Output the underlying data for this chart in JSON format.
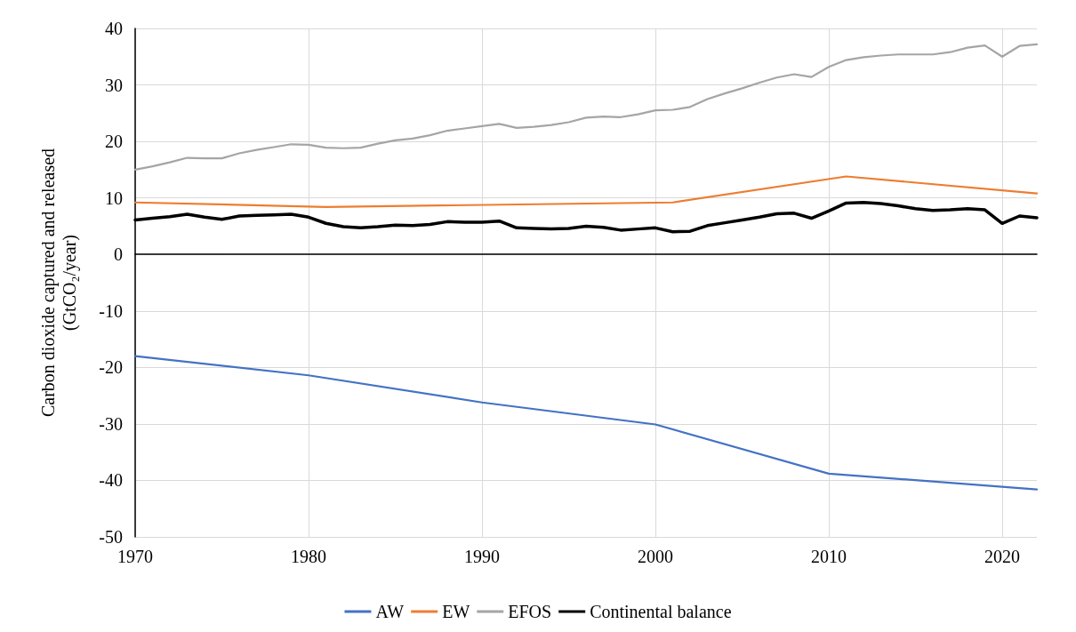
{
  "chart_data": {
    "type": "line",
    "ylabel": "Carbon dioxide captured and released\n(GtCO₂/year)",
    "xlim": [
      1970,
      2022
    ],
    "xticks": [
      1970,
      1980,
      1990,
      2000,
      2010,
      2020
    ],
    "ylim": [
      -50,
      40
    ],
    "yticks": [
      -50,
      -40,
      -30,
      -20,
      -10,
      0,
      10,
      20,
      30,
      40
    ],
    "grid": true,
    "legend": "bottom",
    "marker": "none",
    "line_style": "solid",
    "series": [
      {
        "name": "AW",
        "color": "#4472c4",
        "x": [
          1970,
          1980,
          1990,
          2000,
          2010,
          2022
        ],
        "values": [
          -18,
          -21.4,
          -26.2,
          -30.1,
          -38.8,
          -41.6
        ]
      },
      {
        "name": "EW",
        "color": "#ed7d31",
        "x": [
          1970,
          1981,
          2001,
          2011,
          2022
        ],
        "values": [
          9.2,
          8.4,
          9.2,
          13.8,
          10.8
        ]
      },
      {
        "name": "EFOS",
        "color": "#a5a5a5",
        "x": [
          1970,
          1971,
          1972,
          1973,
          1974,
          1975,
          1976,
          1977,
          1978,
          1979,
          1980,
          1981,
          1982,
          1983,
          1984,
          1985,
          1986,
          1987,
          1988,
          1989,
          1990,
          1991,
          1992,
          1993,
          1994,
          1995,
          1996,
          1997,
          1998,
          1999,
          2000,
          2001,
          2002,
          2003,
          2004,
          2005,
          2006,
          2007,
          2008,
          2009,
          2010,
          2011,
          2012,
          2013,
          2014,
          2015,
          2016,
          2017,
          2018,
          2019,
          2020,
          2021,
          2022
        ],
        "values": [
          15,
          15.6,
          16.3,
          17.1,
          17.0,
          17.0,
          17.9,
          18.5,
          19.0,
          19.5,
          19.4,
          18.9,
          18.8,
          18.9,
          19.6,
          20.2,
          20.5,
          21.1,
          21.9,
          22.3,
          22.7,
          23.1,
          22.4,
          22.6,
          22.9,
          23.4,
          24.2,
          24.4,
          24.3,
          24.8,
          25.5,
          25.6,
          26.1,
          27.5,
          28.5,
          29.4,
          30.4,
          31.3,
          31.9,
          31.4,
          33.2,
          34.4,
          34.9,
          35.2,
          35.4,
          35.4,
          35.4,
          35.8,
          36.6,
          37.0,
          35.0,
          36.9,
          37.2
        ]
      },
      {
        "name": "Continental balance",
        "color": "#000000",
        "x": [
          1970,
          1971,
          1972,
          1973,
          1974,
          1975,
          1976,
          1977,
          1978,
          1979,
          1980,
          1981,
          1982,
          1983,
          1984,
          1985,
          1986,
          1987,
          1988,
          1989,
          1990,
          1991,
          1992,
          1993,
          1994,
          1995,
          1996,
          1997,
          1998,
          1999,
          2000,
          2001,
          2002,
          2003,
          2004,
          2005,
          2006,
          2007,
          2008,
          2009,
          2010,
          2011,
          2012,
          2013,
          2014,
          2015,
          2016,
          2017,
          2018,
          2019,
          2020,
          2021,
          2022
        ],
        "values": [
          6.1,
          6.4,
          6.7,
          7.1,
          6.6,
          6.2,
          6.8,
          6.9,
          7.0,
          7.1,
          6.6,
          5.5,
          4.9,
          4.7,
          4.9,
          5.2,
          5.1,
          5.3,
          5.8,
          5.7,
          5.7,
          5.9,
          4.7,
          4.6,
          4.5,
          4.6,
          5.0,
          4.8,
          4.3,
          4.5,
          4.7,
          4.0,
          4.1,
          5.1,
          5.6,
          6.1,
          6.6,
          7.2,
          7.3,
          6.4,
          7.7,
          9.1,
          9.2,
          9.0,
          8.6,
          8.1,
          7.8,
          7.9,
          8.1,
          7.9,
          5.5,
          6.8,
          6.5
        ]
      }
    ]
  }
}
